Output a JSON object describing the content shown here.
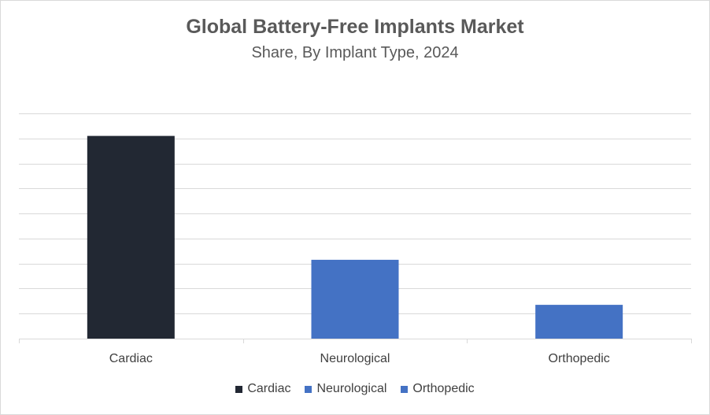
{
  "chart_data": {
    "type": "bar",
    "title": "Global Battery-Free Implants Market",
    "subtitle": "Share, By Implant Type, 2024",
    "categories": [
      "Cardiac",
      "Neurological",
      "Orthopedic"
    ],
    "values": [
      81,
      31.5,
      13.5
    ],
    "colors": [
      "#222833",
      "#4472c4",
      "#4472c4"
    ],
    "ylim": [
      0,
      90
    ],
    "gridlines": true,
    "legend_position": "bottom",
    "legend": [
      {
        "label": "Cardiac",
        "color": "#222833"
      },
      {
        "label": "Neurological",
        "color": "#4472c4"
      },
      {
        "label": "Orthopedic",
        "color": "#4472c4"
      }
    ]
  }
}
